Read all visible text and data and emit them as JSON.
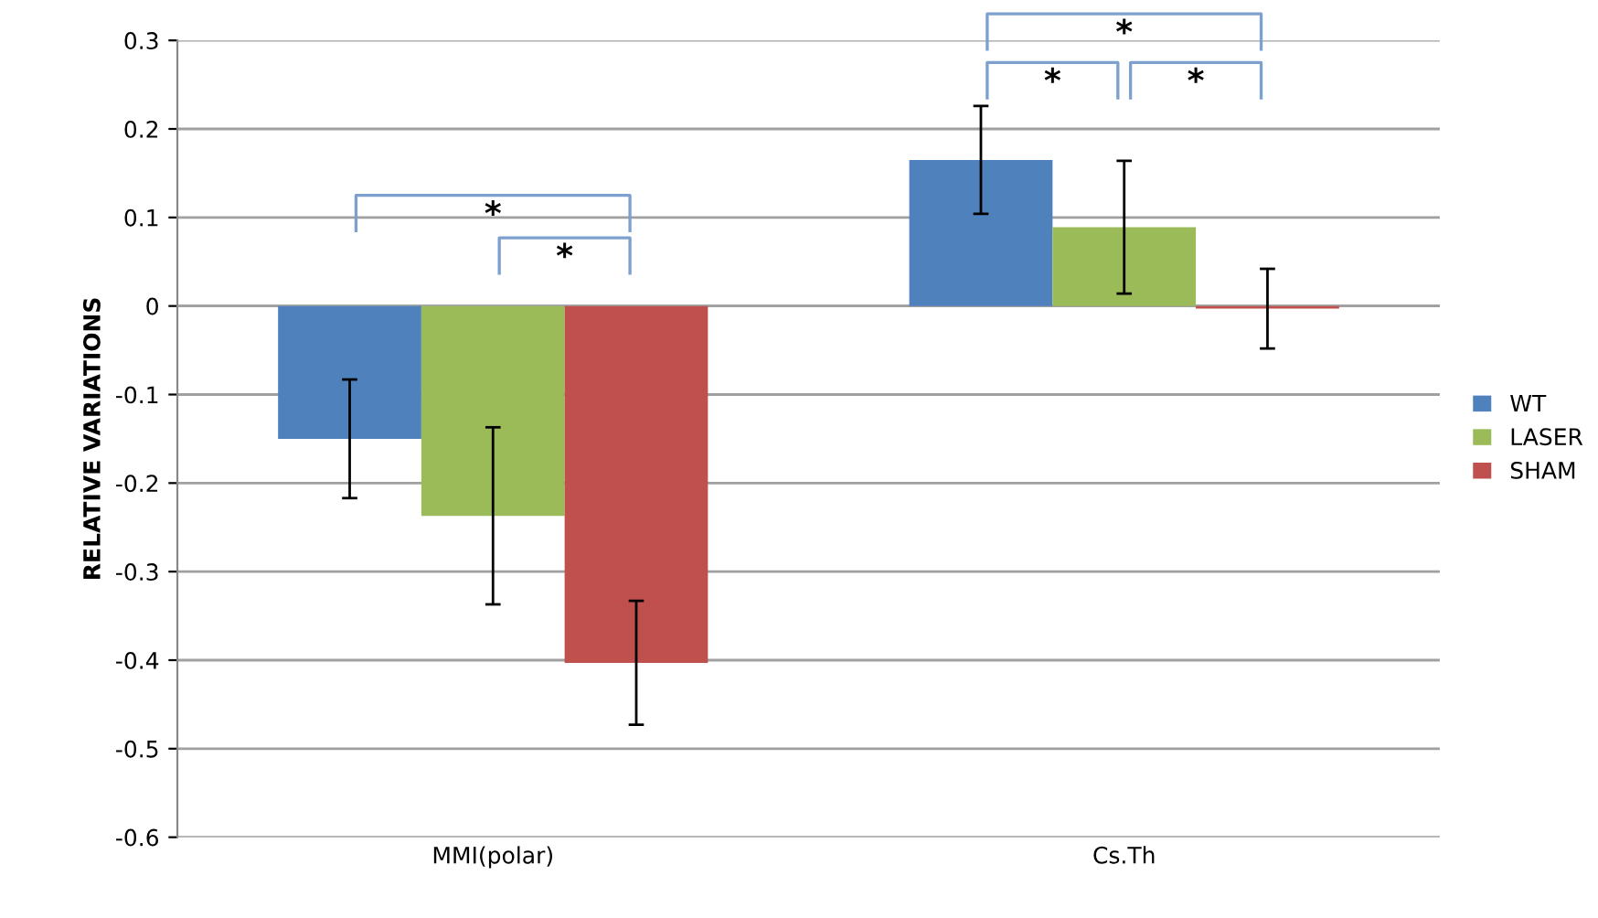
{
  "chart_data": {
    "type": "bar",
    "ylabel": "RELATIVE VARIATIONS",
    "categories": [
      "MMI(polar)",
      "Cs.Th"
    ],
    "series": [
      {
        "name": "WT",
        "color": "#4f81bd",
        "values": [
          -0.15,
          0.165
        ],
        "errors": [
          0.067,
          0.061
        ]
      },
      {
        "name": "LASER",
        "color": "#9bbb59",
        "values": [
          -0.237,
          0.089
        ],
        "errors": [
          0.1,
          0.075
        ]
      },
      {
        "name": "SHAM",
        "color": "#c0504d",
        "values": [
          -0.403,
          -0.003
        ],
        "errors": [
          0.07,
          0.045
        ]
      }
    ],
    "ylim": [
      -0.6,
      0.3
    ],
    "yticks": [
      -0.6,
      -0.5,
      -0.4,
      -0.3,
      -0.2,
      -0.1,
      0,
      0.1,
      0.2,
      0.3
    ],
    "grid": "y",
    "legend": "right",
    "annotations": [
      "*",
      "*",
      "*",
      "*",
      "*"
    ]
  }
}
